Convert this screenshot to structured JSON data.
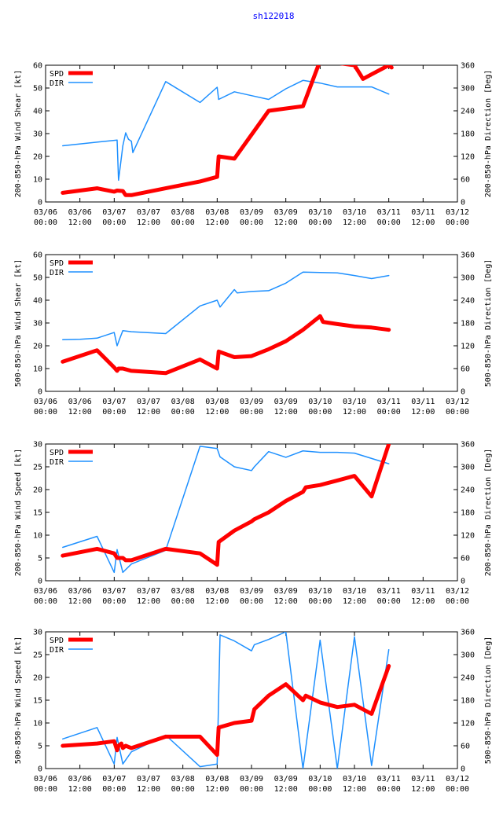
{
  "page_title": "sh122018",
  "colors": {
    "speed": "#ff0000",
    "direction": "#1e90ff",
    "title": "#0000ff"
  },
  "chart_data": [
    {
      "type": "line",
      "ylabel_left": "200-850-hPa Wind Shear [kt]",
      "ylabel_right": "200-850-hPa Direction [Deg]",
      "ylim_left": [
        0,
        60
      ],
      "yticks_left": [
        "0",
        "10",
        "20",
        "30",
        "40",
        "50",
        "60"
      ],
      "ylim_right": [
        0,
        360
      ],
      "yticks_right": [
        "0",
        "60",
        "120",
        "180",
        "240",
        "300",
        "360"
      ],
      "xlim": [
        0,
        144
      ],
      "xticks": [
        {
          "date": "03/06",
          "time": "00:00"
        },
        {
          "date": "03/06",
          "time": "12:00"
        },
        {
          "date": "03/07",
          "time": "00:00"
        },
        {
          "date": "03/07",
          "time": "12:00"
        },
        {
          "date": "03/08",
          "time": "00:00"
        },
        {
          "date": "03/08",
          "time": "12:00"
        },
        {
          "date": "03/09",
          "time": "00:00"
        },
        {
          "date": "03/09",
          "time": "12:00"
        },
        {
          "date": "03/10",
          "time": "00:00"
        },
        {
          "date": "03/10",
          "time": "12:00"
        },
        {
          "date": "03/11",
          "time": "00:00"
        },
        {
          "date": "03/11",
          "time": "12:00"
        },
        {
          "date": "03/12",
          "time": "00:00"
        }
      ],
      "legend": [
        {
          "label": "SPD"
        },
        {
          "label": "DIR"
        }
      ],
      "series": [
        {
          "name": "SPD",
          "axis": "left",
          "x": [
            6,
            18,
            24,
            25,
            27,
            28,
            30,
            42,
            54,
            60,
            60.5,
            66,
            78,
            90,
            96,
            108,
            111,
            114,
            120,
            121
          ],
          "y": [
            4,
            6,
            4.5,
            5,
            4.8,
            3,
            3,
            6,
            9,
            11,
            20,
            19,
            40,
            42,
            62,
            60,
            54,
            56,
            60,
            59
          ]
        },
        {
          "name": "DIR",
          "axis": "right",
          "x": [
            6,
            25,
            25.5,
            27,
            28,
            29,
            30,
            30.5,
            42,
            54,
            60,
            60.5,
            66,
            72,
            78,
            84,
            90,
            96,
            102,
            114,
            120
          ],
          "y": [
            148,
            163,
            57,
            148,
            182,
            165,
            160,
            130,
            317,
            262,
            302,
            270,
            290,
            280,
            270,
            298,
            320,
            313,
            303,
            303,
            284
          ]
        }
      ]
    },
    {
      "type": "line",
      "ylabel_left": "500-850-hPa Wind Shear [kt]",
      "ylabel_right": "500-850-hPa Direction [Deg]",
      "ylim_left": [
        0,
        60
      ],
      "yticks_left": [
        "0",
        "10",
        "20",
        "30",
        "40",
        "50",
        "60"
      ],
      "ylim_right": [
        0,
        360
      ],
      "yticks_right": [
        "0",
        "60",
        "120",
        "180",
        "240",
        "300",
        "360"
      ],
      "xlim": [
        0,
        144
      ],
      "xticks": [
        {
          "date": "03/06",
          "time": "00:00"
        },
        {
          "date": "03/06",
          "time": "12:00"
        },
        {
          "date": "03/07",
          "time": "00:00"
        },
        {
          "date": "03/07",
          "time": "12:00"
        },
        {
          "date": "03/08",
          "time": "00:00"
        },
        {
          "date": "03/08",
          "time": "12:00"
        },
        {
          "date": "03/09",
          "time": "00:00"
        },
        {
          "date": "03/09",
          "time": "12:00"
        },
        {
          "date": "03/10",
          "time": "00:00"
        },
        {
          "date": "03/10",
          "time": "12:00"
        },
        {
          "date": "03/11",
          "time": "00:00"
        },
        {
          "date": "03/11",
          "time": "12:00"
        },
        {
          "date": "03/12",
          "time": "00:00"
        }
      ],
      "legend": [
        {
          "label": "SPD"
        },
        {
          "label": "DIR"
        }
      ],
      "series": [
        {
          "name": "SPD",
          "axis": "left",
          "x": [
            6,
            18,
            24,
            25,
            25.5,
            27,
            30,
            42,
            54,
            60,
            60.5,
            66,
            72,
            78,
            84,
            90,
            96,
            97,
            102,
            108,
            114,
            120
          ],
          "y": [
            13,
            18,
            10.5,
            9,
            10,
            10,
            9,
            8,
            14,
            10,
            17.5,
            15,
            15.5,
            18.5,
            22,
            27,
            33,
            30.5,
            29.5,
            28.5,
            28,
            27
          ]
        },
        {
          "name": "DIR",
          "axis": "right",
          "x": [
            6,
            12,
            18,
            24,
            25,
            26,
            27,
            30,
            42,
            54,
            60,
            61,
            66,
            67,
            72,
            78,
            84,
            90,
            96,
            102,
            108,
            114,
            120
          ],
          "y": [
            136,
            137,
            140,
            155,
            120,
            140,
            160,
            157,
            152,
            225,
            240,
            222,
            268,
            259,
            263,
            265,
            285,
            314,
            313,
            312,
            305,
            297,
            305
          ]
        }
      ]
    },
    {
      "type": "line",
      "ylabel_left": "200-850-hPa Wind Speed [kt]",
      "ylabel_right": "200-850-hPa Direction [Deg]",
      "ylim_left": [
        0,
        30
      ],
      "yticks_left": [
        "0",
        "5",
        "10",
        "15",
        "20",
        "25",
        "30"
      ],
      "ylim_right": [
        0,
        360
      ],
      "yticks_right": [
        "0",
        "60",
        "120",
        "180",
        "240",
        "300",
        "360"
      ],
      "xlim": [
        0,
        144
      ],
      "xticks": [
        {
          "date": "03/06",
          "time": "00:00"
        },
        {
          "date": "03/06",
          "time": "12:00"
        },
        {
          "date": "03/07",
          "time": "00:00"
        },
        {
          "date": "03/07",
          "time": "12:00"
        },
        {
          "date": "03/08",
          "time": "00:00"
        },
        {
          "date": "03/08",
          "time": "12:00"
        },
        {
          "date": "03/09",
          "time": "00:00"
        },
        {
          "date": "03/09",
          "time": "12:00"
        },
        {
          "date": "03/10",
          "time": "00:00"
        },
        {
          "date": "03/10",
          "time": "12:00"
        },
        {
          "date": "03/11",
          "time": "00:00"
        },
        {
          "date": "03/11",
          "time": "12:00"
        },
        {
          "date": "03/12",
          "time": "00:00"
        }
      ],
      "legend": [
        {
          "label": "SPD"
        },
        {
          "label": "DIR"
        }
      ],
      "series": [
        {
          "name": "SPD",
          "axis": "left",
          "x": [
            6,
            18,
            24,
            25,
            27,
            28,
            30,
            42,
            54,
            60,
            60.5,
            66,
            72,
            73,
            78,
            84,
            90,
            91,
            96,
            102,
            108,
            114,
            120
          ],
          "y": [
            5.5,
            7,
            6,
            5,
            5,
            4.5,
            4.5,
            7,
            6,
            3.5,
            8.5,
            11,
            13,
            13.5,
            15,
            17.5,
            19.5,
            20.5,
            21,
            22,
            23,
            18.5,
            30
          ]
        },
        {
          "name": "DIR",
          "axis": "right",
          "x": [
            6,
            18,
            24,
            25,
            27,
            30,
            42,
            54,
            60,
            61,
            66,
            72,
            73,
            78,
            84,
            90,
            96,
            102,
            108,
            114,
            120
          ],
          "y": [
            88,
            117,
            22,
            82,
            22,
            44,
            80,
            354,
            348,
            326,
            300,
            290,
            300,
            340,
            325,
            342,
            338,
            338,
            336,
            322,
            308
          ]
        }
      ]
    },
    {
      "type": "line",
      "ylabel_left": "500-850-hPa Wind Speed [kt]",
      "ylabel_right": "500-850-hPa Direction [Deg]",
      "ylim_left": [
        0,
        30
      ],
      "yticks_left": [
        "0",
        "5",
        "10",
        "15",
        "20",
        "25",
        "30"
      ],
      "ylim_right": [
        0,
        360
      ],
      "yticks_right": [
        "0",
        "60",
        "120",
        "180",
        "240",
        "300",
        "360"
      ],
      "xlim": [
        0,
        144
      ],
      "xticks": [
        {
          "date": "03/06",
          "time": "00:00"
        },
        {
          "date": "03/06",
          "time": "12:00"
        },
        {
          "date": "03/07",
          "time": "00:00"
        },
        {
          "date": "03/07",
          "time": "12:00"
        },
        {
          "date": "03/08",
          "time": "00:00"
        },
        {
          "date": "03/08",
          "time": "12:00"
        },
        {
          "date": "03/09",
          "time": "00:00"
        },
        {
          "date": "03/09",
          "time": "12:00"
        },
        {
          "date": "03/10",
          "time": "00:00"
        },
        {
          "date": "03/10",
          "time": "12:00"
        },
        {
          "date": "03/11",
          "time": "00:00"
        },
        {
          "date": "03/11",
          "time": "12:00"
        },
        {
          "date": "03/12",
          "time": "00:00"
        }
      ],
      "legend": [
        {
          "label": "SPD"
        },
        {
          "label": "DIR"
        }
      ],
      "series": [
        {
          "name": "SPD",
          "axis": "left",
          "x": [
            6,
            18,
            24,
            25,
            25.5,
            26.5,
            27,
            28,
            30,
            42,
            54,
            60,
            60.5,
            66,
            72,
            73,
            78,
            84,
            90,
            91,
            96,
            102,
            108,
            114,
            120
          ],
          "y": [
            5,
            5.5,
            6,
            4,
            5,
            5.5,
            4.5,
            5,
            4.5,
            7,
            7,
            3,
            9,
            10,
            10.5,
            13,
            16,
            18.5,
            15,
            16,
            14.5,
            13.5,
            14,
            12,
            22.5
          ]
        },
        {
          "name": "DIR",
          "axis": "right",
          "x": [
            6,
            18,
            24,
            25,
            27,
            30,
            42,
            54,
            60,
            61,
            66,
            72,
            73,
            78,
            84,
            90,
            96,
            102,
            108,
            114,
            120
          ],
          "y": [
            78,
            108,
            12,
            82,
            12,
            44,
            88,
            5,
            12,
            352,
            336,
            310,
            326,
            340,
            360,
            0,
            338,
            0,
            347,
            8,
            313
          ]
        }
      ]
    }
  ]
}
